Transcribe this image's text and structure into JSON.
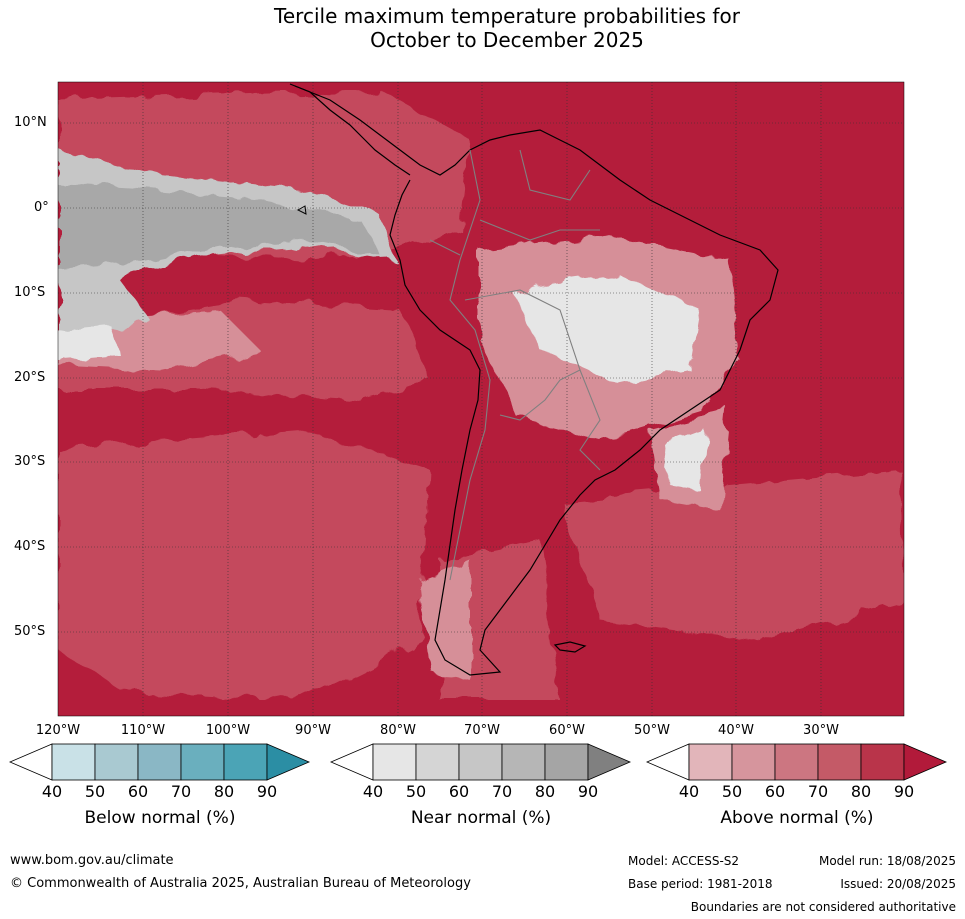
{
  "title": {
    "line1": "Tercile maximum temperature probabilities for",
    "line2": "October to December 2025"
  },
  "map": {
    "lat_labels": [
      "10°N",
      "0°",
      "10°S",
      "20°S",
      "30°S",
      "40°S",
      "50°S"
    ],
    "lon_labels": [
      "120°W",
      "110°W",
      "100°W",
      "90°W",
      "80°W",
      "70°W",
      "60°W",
      "50°W",
      "40°W",
      "30°W"
    ],
    "colors": {
      "above_dark": "#b41d3b",
      "above_mid": "#c44a5d",
      "above_light": "#d68f98",
      "above_pale": "#e2b5ba",
      "near_light": "#e6e6e6",
      "near_mid": "#c6c6c6",
      "near_dark": "#a8a8a8",
      "coast": "#000000",
      "borders": "#808080"
    }
  },
  "legends": [
    {
      "label": "Below normal (%)",
      "ticks": [
        "40",
        "50",
        "60",
        "70",
        "80",
        "90"
      ],
      "colors": [
        "#ffffff",
        "#c9e1e7",
        "#a9c9d1",
        "#8ab7c5",
        "#6aafbe",
        "#4ba4b6",
        "#2b8ea4"
      ]
    },
    {
      "label": "Near normal (%)",
      "ticks": [
        "40",
        "50",
        "60",
        "70",
        "80",
        "90"
      ],
      "colors": [
        "#ffffff",
        "#e6e6e6",
        "#d5d5d5",
        "#c6c6c6",
        "#b6b6b6",
        "#a5a5a5",
        "#808080"
      ]
    },
    {
      "label": "Above normal (%)",
      "ticks": [
        "40",
        "50",
        "60",
        "70",
        "80",
        "90"
      ],
      "colors": [
        "#ffffff",
        "#e2b5ba",
        "#d6959d",
        "#cc7681",
        "#c45a67",
        "#b9344a",
        "#b21a3a"
      ]
    }
  ],
  "footer": {
    "website": "www.bom.gov.au/climate",
    "copyright": "© Commonwealth of Australia 2025, Australian Bureau of Meteorology",
    "model": "Model: ACCESS-S2",
    "model_run": "Model run: 18/08/2025",
    "base_period": "Base period: 1981-2018",
    "issued": "Issued: 20/08/2025",
    "disclaimer": "Boundaries are not considered authoritative"
  }
}
